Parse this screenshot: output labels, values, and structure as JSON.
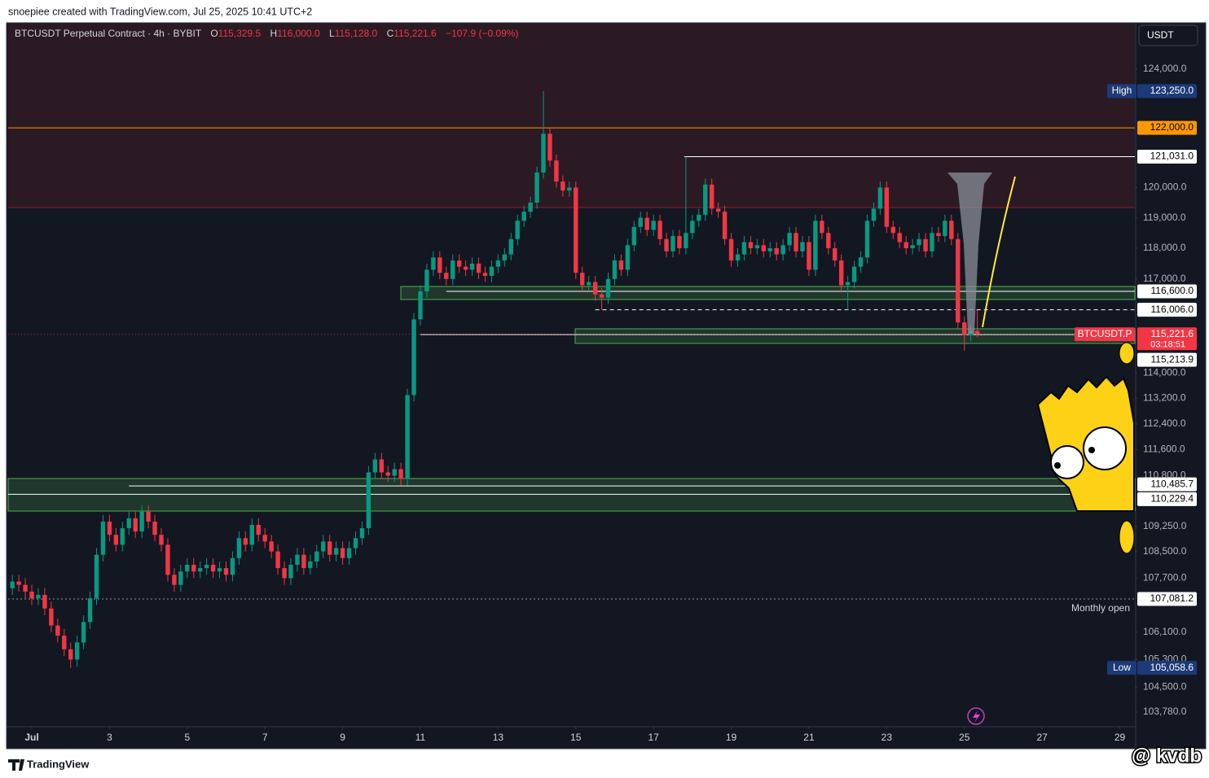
{
  "header": {
    "attribution": "snoepiee created with TradingView.com, Jul 25, 2025 10:41 UTC+2"
  },
  "footer": {
    "brand": "TradingView",
    "watermark": "@ kvdb"
  },
  "chart_data": {
    "type": "candlestick",
    "title": "BTCUSDT Perpetual Contract · 4h · BYBIT",
    "ohlc_legend": {
      "labels": [
        "O",
        "H",
        "L",
        "C"
      ],
      "value_labels": [
        "115,329.5",
        "116,000.0",
        "115,128.0",
        "115,221.6"
      ],
      "change_label": "−107.9 (−0.09%)"
    },
    "currency": "USDT",
    "last_price": {
      "symbol": "BTCUSDT.P",
      "label": "115,221.6",
      "countdown": "03:18:51",
      "color": "#f23645"
    },
    "up_color": "#089981",
    "down_color": "#f23645",
    "log_scale": true,
    "grid": false,
    "xlim": [
      -14.6,
      681.3
    ],
    "xticks": [
      {
        "value": 0,
        "label": "Jul"
      },
      {
        "value": 48,
        "label": "3"
      },
      {
        "value": 96,
        "label": "5"
      },
      {
        "value": 144,
        "label": "7"
      },
      {
        "value": 192,
        "label": "9"
      },
      {
        "value": 240,
        "label": "11"
      },
      {
        "value": 288,
        "label": "13"
      },
      {
        "value": 336,
        "label": "15"
      },
      {
        "value": 384,
        "label": "17"
      },
      {
        "value": 432,
        "label": "19"
      },
      {
        "value": 480,
        "label": "21"
      },
      {
        "value": 528,
        "label": "23"
      },
      {
        "value": 576,
        "label": "25"
      },
      {
        "value": 624,
        "label": "27"
      },
      {
        "value": 672,
        "label": "29"
      }
    ],
    "ylim": [
      103360,
      125600
    ],
    "yticks": [
      {
        "value": 124000,
        "label": "124,000.0"
      },
      {
        "value": 120000,
        "label": "120,000.0"
      },
      {
        "value": 119000,
        "label": "119,000.0"
      },
      {
        "value": 118000,
        "label": "118,000.0"
      },
      {
        "value": 117000,
        "label": "117,000.0"
      },
      {
        "value": 114000,
        "label": "114,000.0"
      },
      {
        "value": 113200,
        "label": "113,200.0"
      },
      {
        "value": 112400,
        "label": "112,400.0"
      },
      {
        "value": 111600,
        "label": "111,600.0"
      },
      {
        "value": 110800,
        "label": "110,800.0"
      },
      {
        "value": 109250,
        "label": "109,250.0"
      },
      {
        "value": 108500,
        "label": "108,500.0"
      },
      {
        "value": 107700,
        "label": "107,700.0"
      },
      {
        "value": 106100,
        "label": "106,100.0"
      },
      {
        "value": 105300,
        "label": "105,300.0"
      },
      {
        "value": 104500,
        "label": "104,500.0"
      },
      {
        "value": 103780,
        "label": "103,780.0"
      }
    ],
    "levels": [
      {
        "value": 123250,
        "label": "123,250.0",
        "tag": "High",
        "label_color": "#1c3a78",
        "text_color": "#ffffff"
      },
      {
        "value": 122000,
        "label": "122,000.0",
        "label_color": "#ff9800",
        "text_color": "#000000",
        "line": "solid",
        "line_color": "#ff9800"
      },
      {
        "value": 121031,
        "label": "121,031.0",
        "label_color": "#ffffff",
        "text_color": "#000000",
        "line": "solid",
        "line_color": "#ffffff",
        "from": 403
      },
      {
        "value": 116600,
        "label": "116,600.0",
        "label_color": "#ffffff",
        "text_color": "#000000",
        "line": "solid",
        "line_color": "#ffffff",
        "from": 256
      },
      {
        "value": 116006,
        "label": "116,006.0",
        "label_color": "#ffffff",
        "text_color": "#000000",
        "line": "dashed",
        "line_color": "#ffffff",
        "from": 348
      },
      {
        "value": 115213.9,
        "label": "115,213.9",
        "label_color": "#ffffff",
        "text_color": "#000000",
        "line": "solid",
        "line_color": "#ffffff",
        "from": 240
      },
      {
        "value": 110485.7,
        "label": "110,485.7",
        "label_color": "#ffffff",
        "text_color": "#000000",
        "line": "solid",
        "line_color": "#ffffff",
        "from": 60
      },
      {
        "value": 110229.4,
        "label": "110,229.4",
        "label_color": "#ffffff",
        "text_color": "#000000",
        "line": "solid",
        "line_color": "#ffffff"
      },
      {
        "value": 107081.2,
        "label": "107,081.2",
        "note": "Monthly open",
        "label_color": "#ffffff",
        "text_color": "#000000",
        "line": "dotted",
        "line_color": "#9598a1"
      },
      {
        "value": 105058.6,
        "label": "105,058.6",
        "tag": "Low",
        "label_color": "#1c3a78",
        "text_color": "#ffffff"
      }
    ],
    "x": [
      -12,
      -8,
      -4,
      0,
      4,
      8,
      12,
      16,
      20,
      24,
      28,
      32,
      36,
      40,
      44,
      48,
      52,
      56,
      60,
      64,
      68,
      72,
      76,
      80,
      84,
      88,
      92,
      96,
      100,
      104,
      108,
      112,
      116,
      120,
      124,
      128,
      132,
      136,
      140,
      144,
      148,
      152,
      156,
      160,
      164,
      168,
      172,
      176,
      180,
      184,
      188,
      192,
      196,
      200,
      204,
      208,
      212,
      216,
      220,
      224,
      228,
      232,
      236,
      240,
      244,
      248,
      252,
      256,
      260,
      264,
      268,
      272,
      276,
      280,
      284,
      288,
      292,
      296,
      300,
      304,
      308,
      312,
      316,
      320,
      324,
      328,
      332,
      336,
      340,
      344,
      348,
      352,
      356,
      360,
      364,
      368,
      372,
      376,
      380,
      384,
      388,
      392,
      396,
      400,
      404,
      408,
      412,
      416,
      420,
      424,
      428,
      432,
      436,
      440,
      444,
      448,
      452,
      456,
      460,
      464,
      468,
      472,
      476,
      480,
      484,
      488,
      492,
      496,
      500,
      504,
      508,
      512,
      516,
      520,
      524,
      528,
      532,
      536,
      540,
      544,
      548,
      552,
      556,
      560,
      564,
      568,
      572,
      576,
      580,
      584
    ],
    "open": [
      107400,
      107600,
      107500,
      107300,
      107100,
      107200,
      106800,
      106300,
      106000,
      105600,
      105300,
      105800,
      106400,
      107100,
      108400,
      109400,
      109000,
      108700,
      109200,
      109500,
      109100,
      109700,
      109400,
      109000,
      108700,
      107800,
      107500,
      107900,
      108100,
      107900,
      108000,
      108100,
      107900,
      108000,
      107800,
      108300,
      108900,
      108700,
      109300,
      109000,
      108800,
      108500,
      108000,
      107700,
      108100,
      108400,
      108000,
      108200,
      108500,
      108800,
      108400,
      108600,
      108300,
      108600,
      108900,
      109200,
      110900,
      111300,
      110900,
      110800,
      111000,
      110700,
      113300,
      115700,
      116600,
      117300,
      117700,
      117200,
      117000,
      117600,
      117400,
      117300,
      117500,
      117200,
      117100,
      117400,
      117600,
      117800,
      118300,
      118900,
      119200,
      119500,
      120500,
      121800,
      120900,
      120200,
      119900,
      120000,
      117200,
      116800,
      116900,
      116500,
      116400,
      117000,
      117600,
      117300,
      118100,
      118700,
      119000,
      118600,
      118900,
      118300,
      117900,
      118400,
      118000,
      118500,
      118900,
      119100,
      120100,
      119300,
      119200,
      118300,
      117600,
      117800,
      118200,
      118000,
      118100,
      117900,
      118000,
      117800,
      118100,
      118500,
      117900,
      118200,
      117300,
      118900,
      118500,
      118000,
      117600,
      116800,
      116900,
      117400,
      117700,
      118900,
      119300,
      120000,
      118700,
      118500,
      118200,
      118000,
      118100,
      118300,
      117900,
      118500,
      118400,
      118900,
      118300,
      115600,
      115200,
      115329.5
    ],
    "high": [
      107800,
      107800,
      107700,
      107500,
      107400,
      107400,
      107000,
      106500,
      106200,
      105800,
      106000,
      106600,
      107300,
      108600,
      109600,
      109600,
      109200,
      109400,
      109700,
      109700,
      109900,
      109900,
      109600,
      109200,
      108900,
      108000,
      108100,
      108300,
      108300,
      108200,
      108300,
      108300,
      108200,
      108200,
      108500,
      109100,
      109100,
      109500,
      109500,
      109200,
      109000,
      108700,
      108200,
      108300,
      108600,
      108600,
      108400,
      108700,
      109000,
      109000,
      108800,
      108800,
      108800,
      109100,
      109400,
      111100,
      111500,
      111500,
      111100,
      111200,
      111200,
      113500,
      115900,
      116800,
      117500,
      117900,
      117900,
      117400,
      117800,
      117800,
      117600,
      117700,
      117700,
      117400,
      117600,
      117800,
      118000,
      118500,
      119100,
      119400,
      119700,
      120700,
      123250,
      122000,
      121100,
      120400,
      120200,
      120200,
      117400,
      117100,
      117100,
      116700,
      117200,
      117800,
      117800,
      118300,
      118900,
      119200,
      119200,
      119100,
      119100,
      118500,
      118600,
      118600,
      121031,
      119100,
      119300,
      120300,
      120300,
      119500,
      119400,
      118500,
      118000,
      118400,
      118400,
      118300,
      118300,
      118200,
      118200,
      118300,
      118700,
      118700,
      118400,
      118400,
      119100,
      119100,
      118700,
      118200,
      117800,
      117100,
      117600,
      117900,
      119100,
      119500,
      120200,
      120200,
      118900,
      118700,
      118400,
      118300,
      118500,
      118500,
      118700,
      118700,
      119100,
      119100,
      118500,
      115800,
      115500,
      116000
    ],
    "low": [
      107200,
      107300,
      107100,
      106900,
      106900,
      106600,
      106100,
      105800,
      105400,
      105058.6,
      105100,
      105600,
      106200,
      106900,
      108200,
      108800,
      108500,
      108500,
      109000,
      108900,
      108900,
      109200,
      108800,
      108500,
      107600,
      107300,
      107300,
      107700,
      107700,
      107700,
      107800,
      107700,
      107700,
      107600,
      107600,
      108100,
      108500,
      108500,
      108800,
      108600,
      108300,
      107800,
      107500,
      107500,
      107900,
      107800,
      107800,
      108000,
      108300,
      108200,
      108200,
      108100,
      108100,
      108400,
      108700,
      109000,
      110700,
      110700,
      110600,
      110600,
      110500,
      110500,
      113100,
      115500,
      116400,
      117100,
      117000,
      116800,
      116800,
      117200,
      117100,
      117100,
      117000,
      116900,
      116900,
      117200,
      117400,
      117600,
      118100,
      118700,
      119000,
      119300,
      120300,
      120700,
      120000,
      119700,
      119700,
      117000,
      116600,
      116600,
      116300,
      116000,
      116200,
      116800,
      117100,
      117100,
      117900,
      118500,
      118400,
      118400,
      118100,
      117700,
      117700,
      117800,
      117800,
      118300,
      118700,
      118900,
      119100,
      119000,
      118100,
      117400,
      117400,
      117600,
      117800,
      117800,
      117700,
      117700,
      117600,
      117600,
      117900,
      117700,
      117700,
      117100,
      117100,
      118300,
      117800,
      117400,
      116600,
      116000,
      116700,
      117200,
      117500,
      118700,
      119100,
      118500,
      118300,
      118000,
      117800,
      117800,
      117900,
      117700,
      117700,
      118200,
      118200,
      118100,
      115400,
      114700,
      115000,
      115128
    ],
    "close": [
      107600,
      107500,
      107300,
      107100,
      107200,
      106800,
      106300,
      106000,
      105600,
      105300,
      105800,
      106400,
      107100,
      108400,
      109400,
      109000,
      108700,
      109200,
      109500,
      109100,
      109700,
      109400,
      109000,
      108700,
      107800,
      107500,
      107900,
      108100,
      107900,
      108000,
      108100,
      107900,
      108000,
      107800,
      108300,
      108900,
      108700,
      109300,
      109000,
      108800,
      108500,
      108000,
      107700,
      108100,
      108400,
      108000,
      108200,
      108500,
      108800,
      108400,
      108600,
      108300,
      108600,
      108900,
      109200,
      110900,
      111300,
      110900,
      110800,
      111000,
      110700,
      113300,
      115700,
      116600,
      117300,
      117700,
      117200,
      117000,
      117600,
      117400,
      117300,
      117500,
      117200,
      117100,
      117400,
      117600,
      117800,
      118300,
      118900,
      119200,
      119500,
      120500,
      121800,
      120900,
      120200,
      119900,
      120000,
      117200,
      116800,
      116900,
      116500,
      116400,
      117000,
      117600,
      117300,
      118100,
      118700,
      119000,
      118600,
      118900,
      118300,
      117900,
      118400,
      118000,
      118500,
      118900,
      119100,
      120100,
      119300,
      119200,
      118300,
      117600,
      117800,
      118200,
      118000,
      118100,
      117900,
      118000,
      117800,
      118100,
      118500,
      117900,
      118200,
      117300,
      118900,
      118500,
      118000,
      117600,
      116800,
      116900,
      117400,
      117700,
      118900,
      119300,
      120000,
      118700,
      118500,
      118200,
      118000,
      118100,
      118300,
      117900,
      118500,
      118400,
      118900,
      118300,
      115600,
      115200,
      115329.5,
      115221.6
    ]
  }
}
